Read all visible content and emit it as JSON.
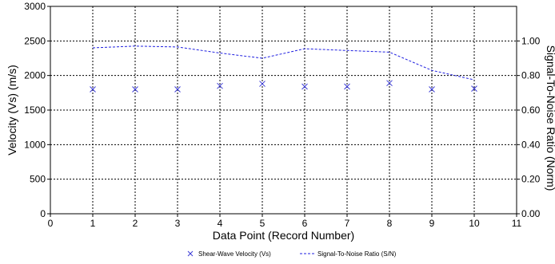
{
  "chart_data": {
    "type": "line",
    "title": "",
    "xlabel": "Data Point (Record Number)",
    "ylabel": "Velocity (Vs) (m/s)",
    "y2label": "Signal-To-Noise Ratio (Norm)",
    "xlim": [
      0,
      11
    ],
    "ylim": [
      0,
      3000
    ],
    "y2lim": [
      0,
      1.2
    ],
    "x_ticks": [
      "0",
      "1",
      "2",
      "3",
      "4",
      "5",
      "6",
      "7",
      "8",
      "9",
      "10",
      "11"
    ],
    "y_ticks": [
      "0",
      "500",
      "1000",
      "1500",
      "2000",
      "2500",
      "3000"
    ],
    "y2_ticks": [
      "0.00",
      "0.20",
      "0.40",
      "0.60",
      "0.80",
      "1.00"
    ],
    "grid": true,
    "legend_position": "bottom",
    "series": [
      {
        "name": "Shear-Wave Velocity (Vs)",
        "axis": "left",
        "marker": "x",
        "color": "#3a3ad6",
        "x": [
          1,
          2,
          3,
          4,
          5,
          6,
          7,
          8,
          9,
          10
        ],
        "values": [
          1800,
          1800,
          1800,
          1850,
          1880,
          1840,
          1840,
          1890,
          1800,
          1810
        ]
      },
      {
        "name": "Signal-To-Noise Ratio (S/N)",
        "axis": "right",
        "line_style": "dashed",
        "color": "#1f1fe0",
        "x": [
          1,
          2,
          3,
          4,
          5,
          6,
          7,
          8,
          9,
          10
        ],
        "values": [
          0.96,
          0.97,
          0.965,
          0.93,
          0.9,
          0.955,
          0.945,
          0.935,
          0.83,
          0.775
        ]
      }
    ]
  }
}
